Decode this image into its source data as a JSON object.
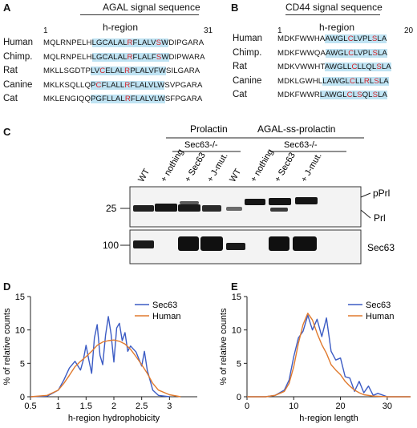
{
  "panelA": {
    "label": "A",
    "title": "AGAL signal sequence",
    "hregion": "h-region",
    "start": "1",
    "end": "31",
    "rows": [
      {
        "species": "Human",
        "seq": [
          {
            "t": "MQLRNPELH",
            "c": ""
          },
          {
            "t": "LGCALAL",
            "c": "hl"
          },
          {
            "t": "R",
            "c": "hl red"
          },
          {
            "t": "FLALV",
            "c": "hl"
          },
          {
            "t": "S",
            "c": "hl red"
          },
          {
            "t": "W",
            "c": "hl"
          },
          {
            "t": "DIPGARA",
            "c": ""
          }
        ]
      },
      {
        "species": "Chimp.",
        "seq": [
          {
            "t": "MQLRNPELH",
            "c": ""
          },
          {
            "t": "LGCALAL",
            "c": "hl"
          },
          {
            "t": "R",
            "c": "hl red"
          },
          {
            "t": "FLALF",
            "c": "hl"
          },
          {
            "t": "S",
            "c": "hl red"
          },
          {
            "t": "W",
            "c": "hl"
          },
          {
            "t": "DIPWARA",
            "c": ""
          }
        ]
      },
      {
        "species": "Rat",
        "seq": [
          {
            "t": "MKLLSGDTP",
            "c": ""
          },
          {
            "t": "LV",
            "c": "hl"
          },
          {
            "t": "C",
            "c": "hl red"
          },
          {
            "t": "ELAL",
            "c": "hl"
          },
          {
            "t": "R",
            "c": "hl red"
          },
          {
            "t": "PLALVFW",
            "c": "hl"
          },
          {
            "t": "SILGARA",
            "c": ""
          }
        ]
      },
      {
        "species": "Canine",
        "seq": [
          {
            "t": "MKLKSQLLQ",
            "c": ""
          },
          {
            "t": "P",
            "c": "hl"
          },
          {
            "t": "C",
            "c": "hl red"
          },
          {
            "t": "FLALL",
            "c": "hl"
          },
          {
            "t": "R",
            "c": "hl red"
          },
          {
            "t": "FLALVLW",
            "c": "hl"
          },
          {
            "t": "SVPGARA",
            "c": ""
          }
        ]
      },
      {
        "species": "Cat",
        "seq": [
          {
            "t": "MKLENGIQQ",
            "c": ""
          },
          {
            "t": "PGFLLAL",
            "c": "hl"
          },
          {
            "t": "R",
            "c": "hl red"
          },
          {
            "t": "FLALVLW",
            "c": "hl"
          },
          {
            "t": "SFPGARA",
            "c": ""
          }
        ]
      }
    ]
  },
  "panelB": {
    "label": "B",
    "title": "CD44 signal sequence",
    "hregion": "h-region",
    "start": "1",
    "end": "20",
    "rows": [
      {
        "species": "Human",
        "seq": [
          {
            "t": "MDKFWWHA",
            "c": ""
          },
          {
            "t": "AWGL",
            "c": "hl"
          },
          {
            "t": "C",
            "c": "hl red"
          },
          {
            "t": "LVPL",
            "c": "hl"
          },
          {
            "t": "S",
            "c": "hl red"
          },
          {
            "t": "LA",
            "c": "hl"
          }
        ]
      },
      {
        "species": "Chimp.",
        "seq": [
          {
            "t": "MDKFWWQA",
            "c": ""
          },
          {
            "t": "AWGL",
            "c": "hl"
          },
          {
            "t": "C",
            "c": "hl red"
          },
          {
            "t": "LVPL",
            "c": "hl"
          },
          {
            "t": "S",
            "c": "hl red"
          },
          {
            "t": "LA",
            "c": "hl"
          }
        ]
      },
      {
        "species": "Rat",
        "seq": [
          {
            "t": "MDKVWWHT",
            "c": ""
          },
          {
            "t": "AWGLL",
            "c": "hl"
          },
          {
            "t": "C",
            "c": "hl red"
          },
          {
            "t": "LLQL",
            "c": "hl"
          },
          {
            "t": "S",
            "c": "hl red"
          },
          {
            "t": "LA",
            "c": "hl"
          }
        ]
      },
      {
        "species": "Canine",
        "seq": [
          {
            "t": "MDKLGWHL",
            "c": ""
          },
          {
            "t": "LAWGL",
            "c": "hl"
          },
          {
            "t": "C",
            "c": "hl red"
          },
          {
            "t": "LL",
            "c": "hl"
          },
          {
            "t": "R",
            "c": "hl red"
          },
          {
            "t": "L",
            "c": "hl"
          },
          {
            "t": "S",
            "c": "hl red"
          },
          {
            "t": "LA",
            "c": "hl"
          }
        ]
      },
      {
        "species": "Cat",
        "seq": [
          {
            "t": "MDKFWWR",
            "c": ""
          },
          {
            "t": "LAWGL",
            "c": "hl"
          },
          {
            "t": "C",
            "c": "hl red"
          },
          {
            "t": "L",
            "c": "hl"
          },
          {
            "t": "S",
            "c": "hl red"
          },
          {
            "t": "QL",
            "c": "hl"
          },
          {
            "t": "S",
            "c": "hl red"
          },
          {
            "t": "LA",
            "c": "hl"
          }
        ]
      }
    ]
  },
  "panelC": {
    "label": "C",
    "group1": "Prolactin",
    "group2": "AGAL-ss-prolactin",
    "sub1": "Sec63-/-",
    "sub2": "Sec63-/-",
    "lanes": [
      "WT",
      "+ nothing",
      "+ Sec63",
      "+ J-mut.",
      "WT",
      "+ nothing",
      "+ Sec63",
      "+ J-mut."
    ],
    "mw_top": "25",
    "mw_bottom": "100",
    "pPrl": "pPrl",
    "Prl": "Prl",
    "Sec63": "Sec63"
  },
  "panelD": {
    "label": "D",
    "chart_data": {
      "type": "line",
      "xlabel": "h-region hydrophobicity",
      "ylabel": "% of relative counts",
      "xlim": [
        0.5,
        3.5
      ],
      "ylim": [
        0,
        15
      ],
      "xticks": [
        "0.5",
        "1",
        "1.5",
        "2",
        "2.5",
        "3"
      ],
      "yticks": [
        "0",
        "5",
        "10",
        "15"
      ],
      "legend": "top-right",
      "series": [
        {
          "name": "Sec63",
          "color": "#3b5bc4",
          "x": [
            0.5,
            0.8,
            1.0,
            1.1,
            1.2,
            1.3,
            1.4,
            1.45,
            1.5,
            1.55,
            1.6,
            1.65,
            1.7,
            1.75,
            1.8,
            1.85,
            1.9,
            1.95,
            2.0,
            2.05,
            2.1,
            2.15,
            2.2,
            2.25,
            2.3,
            2.4,
            2.5,
            2.55,
            2.6,
            2.7,
            2.8,
            3.0
          ],
          "y": [
            0,
            0.1,
            1.0,
            2.5,
            4.3,
            5.3,
            4.0,
            5.5,
            7.7,
            5.5,
            3.5,
            8.8,
            10.8,
            6.2,
            4.8,
            9.2,
            12.0,
            9.4,
            5.2,
            10.3,
            11.0,
            8.4,
            9.6,
            6.8,
            7.6,
            6.7,
            4.6,
            6.8,
            4.0,
            1.0,
            0.2,
            0
          ]
        },
        {
          "name": "Human",
          "color": "#e07a2e",
          "x": [
            0.5,
            0.8,
            1.0,
            1.1,
            1.2,
            1.3,
            1.4,
            1.5,
            1.6,
            1.7,
            1.8,
            1.9,
            2.0,
            2.1,
            2.2,
            2.3,
            2.4,
            2.5,
            2.6,
            2.7,
            2.8,
            3.0,
            3.2
          ],
          "y": [
            0,
            0.2,
            1.0,
            2.0,
            3.2,
            4.5,
            5.3,
            6.0,
            6.8,
            7.7,
            8.2,
            8.4,
            8.5,
            8.3,
            7.9,
            7.1,
            6.0,
            4.8,
            3.5,
            2.0,
            1.0,
            0.3,
            0
          ]
        }
      ]
    }
  },
  "panelE": {
    "label": "E",
    "chart_data": {
      "type": "line",
      "xlabel": "h-region length",
      "ylabel": "% of relative counts",
      "xlim": [
        0,
        35
      ],
      "ylim": [
        0,
        15
      ],
      "xticks": [
        "0",
        "10",
        "20",
        "30"
      ],
      "yticks": [
        "0",
        "5",
        "10",
        "15"
      ],
      "legend": "top-right",
      "series": [
        {
          "name": "Sec63",
          "color": "#3b5bc4",
          "x": [
            0,
            4,
            6,
            8,
            9,
            10,
            11,
            12,
            13,
            14,
            15,
            16,
            17,
            18,
            19,
            20,
            21,
            22,
            23,
            24,
            25,
            26,
            27,
            28,
            30,
            35
          ],
          "y": [
            0,
            0,
            0.2,
            1.0,
            2.5,
            6.0,
            8.8,
            9.8,
            12.2,
            10.0,
            11.6,
            9.0,
            11.8,
            6.8,
            5.5,
            5.8,
            3.0,
            2.8,
            0.8,
            2.3,
            0.6,
            1.6,
            0.2,
            0.5,
            0,
            0
          ]
        },
        {
          "name": "Human",
          "color": "#e07a2e",
          "x": [
            0,
            4,
            6,
            8,
            9,
            10,
            11,
            12,
            13,
            14,
            15,
            16,
            17,
            18,
            19,
            20,
            21,
            22,
            23,
            24,
            25,
            27,
            30,
            35
          ],
          "y": [
            0,
            0,
            0.2,
            0.8,
            2.0,
            4.5,
            8.0,
            10.8,
            12.5,
            11.5,
            9.5,
            7.8,
            6.5,
            4.8,
            4.0,
            3.3,
            2.3,
            1.6,
            1.0,
            0.6,
            0.3,
            0.1,
            0,
            0
          ]
        }
      ]
    }
  }
}
